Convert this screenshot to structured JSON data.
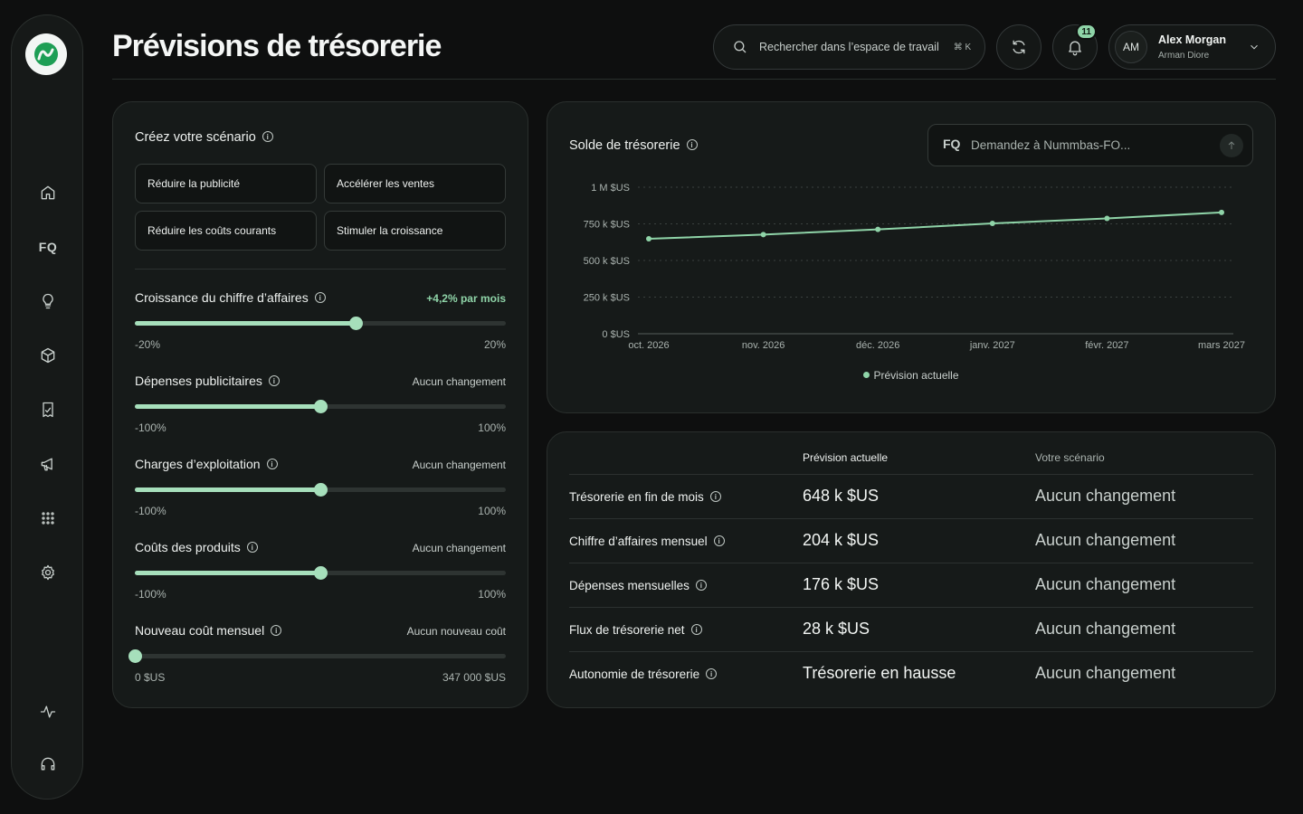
{
  "header": {
    "title": "Prévisions de trésorerie",
    "search_placeholder": "Rechercher dans l’espace de travail",
    "search_shortcut": "⌘ K",
    "notifications_count": "11",
    "user": {
      "initials": "AM",
      "name": "Alex Morgan",
      "subtitle": "Arman Diore"
    }
  },
  "sidebar": {
    "items": [
      {
        "icon": "home-icon"
      },
      {
        "icon": "fq-icon",
        "label": "FQ"
      },
      {
        "icon": "lightbulb-icon"
      },
      {
        "icon": "cube-icon"
      },
      {
        "icon": "receipt-icon"
      },
      {
        "icon": "megaphone-icon"
      },
      {
        "icon": "grid-icon"
      },
      {
        "icon": "gear-icon"
      }
    ],
    "bottom": [
      {
        "icon": "activity-icon"
      },
      {
        "icon": "headset-icon"
      }
    ]
  },
  "scenario": {
    "title": "Créez votre scénario",
    "buttons": [
      "Réduire la publicité",
      "Accélérer les ventes",
      "Réduire les coûts courants",
      "Stimuler la croissance"
    ],
    "sliders": [
      {
        "label": "Croissance du chiffre d’affaires",
        "status": "+4,2% par mois",
        "min": "-20%",
        "max": "20%",
        "value": 0.595,
        "highlight": true
      },
      {
        "label": "Dépenses publicitaires",
        "status": "Aucun changement",
        "min": "-100%",
        "max": "100%",
        "value": 0.5
      },
      {
        "label": "Charges d’exploitation",
        "status": "Aucun changement",
        "min": "-100%",
        "max": "100%",
        "value": 0.5
      },
      {
        "label": "Coûts des produits",
        "status": "Aucun changement",
        "min": "-100%",
        "max": "100%",
        "value": 0.5
      },
      {
        "label": "Nouveau coût mensuel",
        "status": "Aucun nouveau coût",
        "min": "0 $US",
        "max": "347 000 $US",
        "value": 0.0
      }
    ]
  },
  "chart": {
    "title": "Solde de trésorerie",
    "ask_logo": "FQ",
    "ask_placeholder": "Demandez à Nummbas-FO...",
    "legend": "Prévision actuelle"
  },
  "chart_data": {
    "type": "line",
    "title": "Solde de trésorerie",
    "x": [
      "oct. 2026",
      "nov. 2026",
      "déc. 2026",
      "janv. 2027",
      "févr. 2027",
      "mars 2027"
    ],
    "y_tick_labels": [
      "0 $US",
      "250 k $US",
      "500 k $US",
      "750 k $US",
      "1 M $US"
    ],
    "y_ticks": [
      0,
      250000,
      500000,
      750000,
      1000000
    ],
    "ylim": [
      0,
      1000000
    ],
    "series": [
      {
        "name": "Prévision actuelle",
        "values": [
          648000,
          677000,
          712000,
          753000,
          787000,
          828000
        ],
        "color": "#8fd4a8"
      }
    ],
    "grid": "dotted horizontal",
    "legend_position": "bottom-center"
  },
  "table": {
    "headers": {
      "current": "Prévision actuelle",
      "scenario": "Votre scénario"
    },
    "rows": [
      {
        "label": "Trésorerie en fin de mois",
        "current": "648 k $US",
        "scenario": "Aucun changement"
      },
      {
        "label": "Chiffre d’affaires mensuel",
        "current": "204 k $US",
        "scenario": "Aucun changement"
      },
      {
        "label": "Dépenses mensuelles",
        "current": "176 k $US",
        "scenario": "Aucun changement"
      },
      {
        "label": "Flux de trésorerie net",
        "current": "28 k $US",
        "scenario": "Aucun changement"
      },
      {
        "label": "Autonomie de trésorerie",
        "current": "Trésorerie en hausse",
        "scenario": "Aucun changement"
      }
    ]
  },
  "colors": {
    "accent": "#8fd4a8",
    "slider": "#a6dfbb",
    "background": "#0e0f0f",
    "panel": "#161a19"
  }
}
